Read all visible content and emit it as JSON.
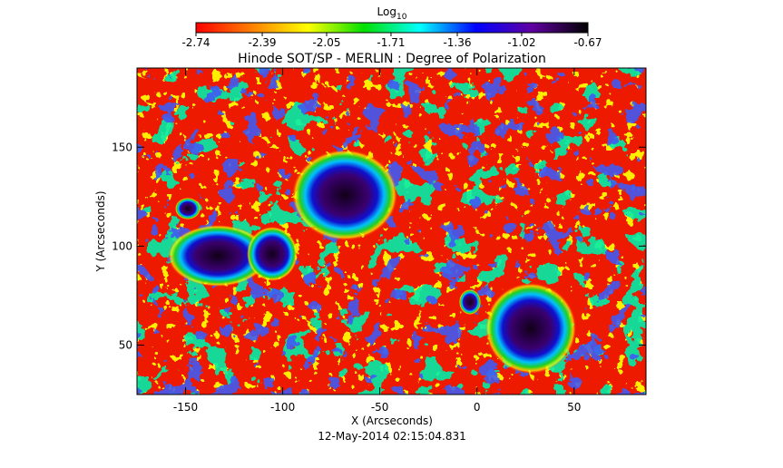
{
  "chart_data": {
    "type": "image",
    "title": "Hinode SOT/SP - MERLIN : Degree of Polarization",
    "subtitle": "12-May-2014 02:15:04.831",
    "x_label": "X (Arcseconds)",
    "y_label": "Y (Arcseconds)",
    "xlim": [
      -175,
      87
    ],
    "xticks": [
      -150,
      -100,
      -50,
      0,
      50
    ],
    "ylim": [
      25,
      190
    ],
    "yticks": [
      50,
      100,
      150
    ],
    "colorbar": {
      "title": "Log",
      "title_sub": "10",
      "lim": [
        -2.74,
        -0.67
      ],
      "ticks": [
        -2.74,
        -2.39,
        -2.05,
        -1.71,
        -1.36,
        -1.02,
        -0.67
      ],
      "colors": [
        "#ff0000",
        "#ff8000",
        "#ffff00",
        "#00e000",
        "#00ffff",
        "#0000ff",
        "#6000a0",
        "#000000"
      ]
    }
  }
}
